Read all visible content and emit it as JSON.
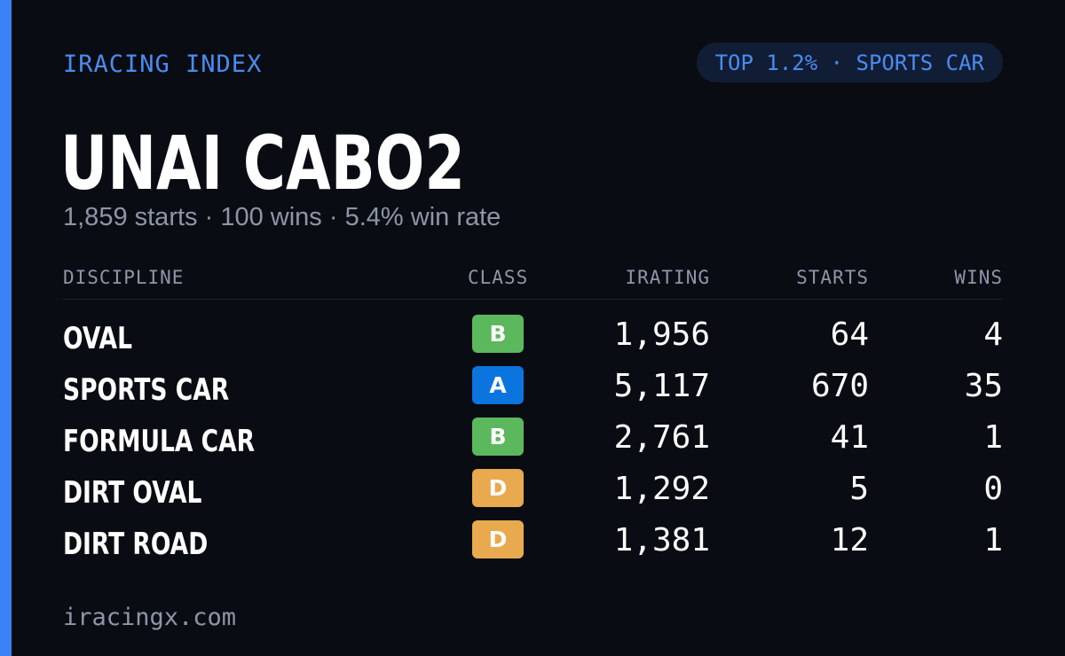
{
  "brand": "IRACING INDEX",
  "rank_badge": "TOP 1.2% · SPORTS CAR",
  "driver": {
    "name": "UNAI CABO2",
    "starts": "1,859 starts",
    "wins": "100 wins",
    "win_rate": "5.4% win rate",
    "separator": "·"
  },
  "table": {
    "headers": {
      "discipline": "DISCIPLINE",
      "class": "CLASS",
      "irating": "IRATING",
      "starts": "STARTS",
      "wins": "WINS"
    },
    "rows": [
      {
        "discipline": "OVAL",
        "class": "B",
        "class_color": "#5cb85c",
        "irating": "1,956",
        "starts": "64",
        "wins": "4"
      },
      {
        "discipline": "SPORTS CAR",
        "class": "A",
        "class_color": "#0b74de",
        "irating": "5,117",
        "starts": "670",
        "wins": "35"
      },
      {
        "discipline": "FORMULA CAR",
        "class": "B",
        "class_color": "#5cb85c",
        "irating": "2,761",
        "starts": "41",
        "wins": "1"
      },
      {
        "discipline": "DIRT OVAL",
        "class": "D",
        "class_color": "#e8a94f",
        "irating": "1,292",
        "starts": "5",
        "wins": "0"
      },
      {
        "discipline": "DIRT ROAD",
        "class": "D",
        "class_color": "#e8a94f",
        "irating": "1,381",
        "starts": "12",
        "wins": "1"
      }
    ]
  },
  "footer": "iracingx.com",
  "colors": {
    "accent": "#3b82f6",
    "background": "#0a0c13"
  }
}
